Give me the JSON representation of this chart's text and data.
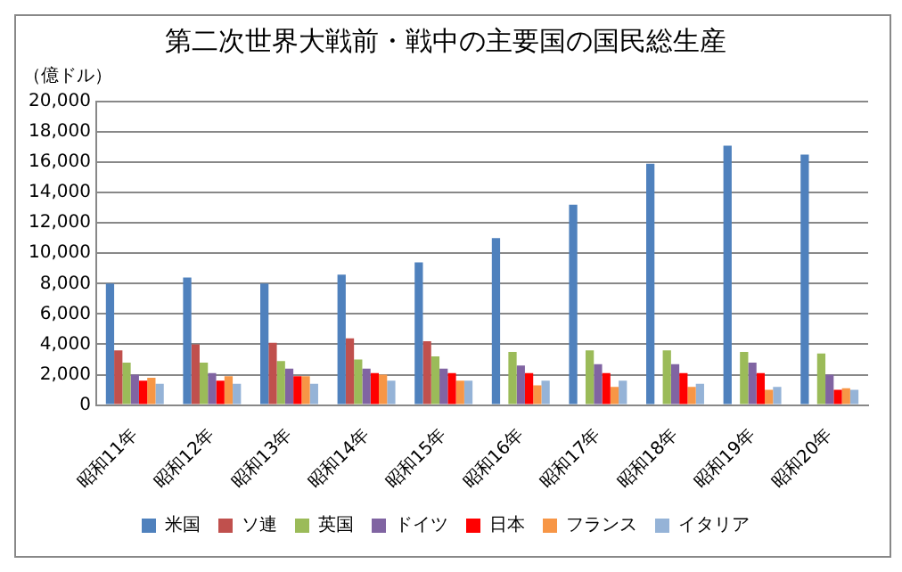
{
  "chart_data": {
    "type": "bar",
    "title": "第二次世界大戦前・戦中の主要国の国民総生産",
    "ylabel": "（億ドル）",
    "categories": [
      "昭和11年",
      "昭和12年",
      "昭和13年",
      "昭和14年",
      "昭和15年",
      "昭和16年",
      "昭和17年",
      "昭和18年",
      "昭和19年",
      "昭和20年"
    ],
    "series": [
      {
        "name": "米国",
        "color": "#4f81bd",
        "values": [
          8000,
          8400,
          8000,
          8600,
          9400,
          11000,
          13200,
          15900,
          17100,
          16500
        ]
      },
      {
        "name": "ソ連",
        "color": "#c0504d",
        "values": [
          3600,
          4000,
          4100,
          4400,
          4200,
          null,
          null,
          null,
          null,
          null
        ]
      },
      {
        "name": "英国",
        "color": "#9bbb59",
        "values": [
          2800,
          2800,
          2900,
          3000,
          3200,
          3500,
          3600,
          3600,
          3500,
          3400
        ]
      },
      {
        "name": "ドイツ",
        "color": "#8064a2",
        "values": [
          2000,
          2100,
          2400,
          2400,
          2400,
          2600,
          2700,
          2700,
          2800,
          2000
        ]
      },
      {
        "name": "日本",
        "color": "#ff0000",
        "values": [
          1600,
          1600,
          1900,
          2100,
          2100,
          2100,
          2100,
          2100,
          2100,
          1000
        ]
      },
      {
        "name": "フランス",
        "color": "#f79646",
        "values": [
          1800,
          1900,
          1900,
          2000,
          1600,
          1300,
          1200,
          1200,
          1000,
          1100
        ]
      },
      {
        "name": "イタリア",
        "color": "#95b3d7",
        "values": [
          1400,
          1400,
          1400,
          1600,
          1600,
          1600,
          1600,
          1400,
          1200,
          1000
        ]
      }
    ],
    "ylim": [
      0,
      20000
    ],
    "yticks": [
      0,
      {
        "value": 2000,
        "label": "2,000"
      },
      {
        "value": 4000,
        "label": "4,000"
      },
      {
        "value": 6000,
        "label": "6,000"
      },
      {
        "value": 8000,
        "label": "8,000"
      },
      {
        "value": 10000,
        "label": "10,000"
      },
      {
        "value": 12000,
        "label": "12,000"
      },
      {
        "value": 14000,
        "label": "14,000"
      },
      {
        "value": 16000,
        "label": "16,000"
      },
      {
        "value": 18000,
        "label": "18,000"
      },
      {
        "value": 20000,
        "label": "20,000"
      }
    ],
    "grid": "y",
    "legend": "bottom"
  }
}
